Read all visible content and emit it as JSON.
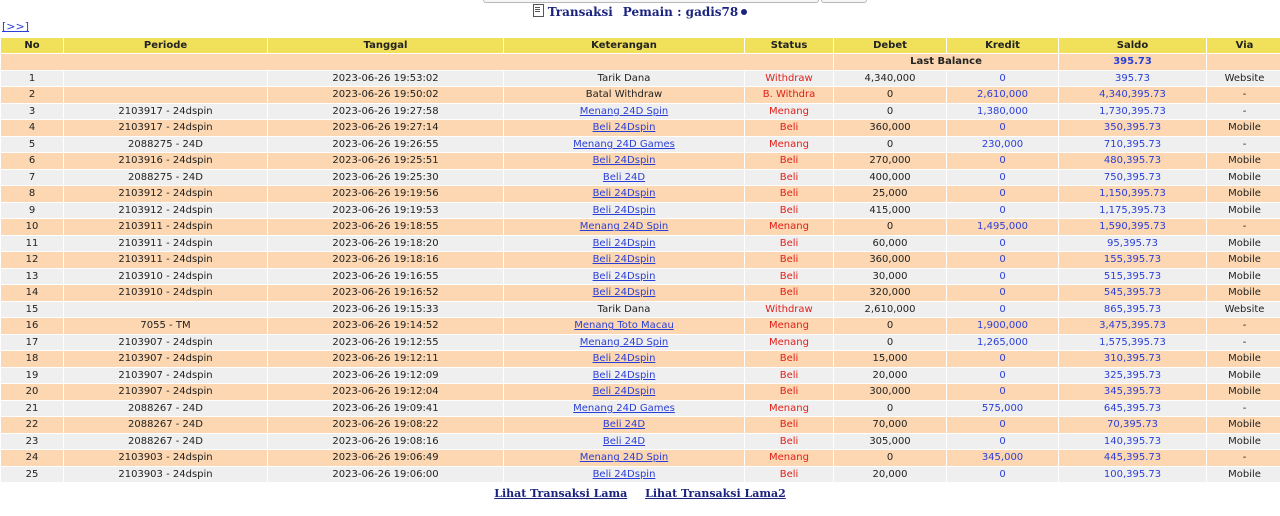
{
  "header": {
    "transaksi_label": "Transaksi",
    "pemain_label": "Pemain : gadis78"
  },
  "nav": {
    "next_label": "[>>]"
  },
  "columns": [
    "No",
    "Periode",
    "Tanggal",
    "Keterangan",
    "Status",
    "Debet",
    "Kredit",
    "Saldo",
    "Via"
  ],
  "last_balance": {
    "label": "Last Balance",
    "value": "395.73"
  },
  "rows": [
    {
      "no": "1",
      "periode": "",
      "tanggal": "2023-06-26 19:53:02",
      "keterangan": "Tarik Dana",
      "status": "Withdraw",
      "debet": "4,340,000",
      "kredit": "0",
      "saldo": "395.73",
      "via": "Website"
    },
    {
      "no": "2",
      "periode": "",
      "tanggal": "2023-06-26 19:50:02",
      "keterangan": "Batal Withdraw",
      "status": "B. Withdra",
      "debet": "0",
      "kredit": "2,610,000",
      "saldo": "4,340,395.73",
      "via": "-"
    },
    {
      "no": "3",
      "periode": "2103917 - 24dspin",
      "tanggal": "2023-06-26 19:27:58",
      "keterangan": "Menang 24D Spin",
      "status": "Menang",
      "debet": "0",
      "kredit": "1,380,000",
      "saldo": "1,730,395.73",
      "via": "-"
    },
    {
      "no": "4",
      "periode": "2103917 - 24dspin",
      "tanggal": "2023-06-26 19:27:14",
      "keterangan": "Beli 24Dspin",
      "status": "Beli",
      "debet": "360,000",
      "kredit": "0",
      "saldo": "350,395.73",
      "via": "Mobile"
    },
    {
      "no": "5",
      "periode": "2088275 - 24D",
      "tanggal": "2023-06-26 19:26:55",
      "keterangan": "Menang 24D Games",
      "status": "Menang",
      "debet": "0",
      "kredit": "230,000",
      "saldo": "710,395.73",
      "via": "-"
    },
    {
      "no": "6",
      "periode": "2103916 - 24dspin",
      "tanggal": "2023-06-26 19:25:51",
      "keterangan": "Beli 24Dspin",
      "status": "Beli",
      "debet": "270,000",
      "kredit": "0",
      "saldo": "480,395.73",
      "via": "Mobile"
    },
    {
      "no": "7",
      "periode": "2088275 - 24D",
      "tanggal": "2023-06-26 19:25:30",
      "keterangan": "Beli 24D",
      "status": "Beli",
      "debet": "400,000",
      "kredit": "0",
      "saldo": "750,395.73",
      "via": "Mobile"
    },
    {
      "no": "8",
      "periode": "2103912 - 24dspin",
      "tanggal": "2023-06-26 19:19:56",
      "keterangan": "Beli 24Dspin",
      "status": "Beli",
      "debet": "25,000",
      "kredit": "0",
      "saldo": "1,150,395.73",
      "via": "Mobile"
    },
    {
      "no": "9",
      "periode": "2103912 - 24dspin",
      "tanggal": "2023-06-26 19:19:53",
      "keterangan": "Beli 24Dspin",
      "status": "Beli",
      "debet": "415,000",
      "kredit": "0",
      "saldo": "1,175,395.73",
      "via": "Mobile"
    },
    {
      "no": "10",
      "periode": "2103911 - 24dspin",
      "tanggal": "2023-06-26 19:18:55",
      "keterangan": "Menang 24D Spin",
      "status": "Menang",
      "debet": "0",
      "kredit": "1,495,000",
      "saldo": "1,590,395.73",
      "via": "-"
    },
    {
      "no": "11",
      "periode": "2103911 - 24dspin",
      "tanggal": "2023-06-26 19:18:20",
      "keterangan": "Beli 24Dspin",
      "status": "Beli",
      "debet": "60,000",
      "kredit": "0",
      "saldo": "95,395.73",
      "via": "Mobile"
    },
    {
      "no": "12",
      "periode": "2103911 - 24dspin",
      "tanggal": "2023-06-26 19:18:16",
      "keterangan": "Beli 24Dspin",
      "status": "Beli",
      "debet": "360,000",
      "kredit": "0",
      "saldo": "155,395.73",
      "via": "Mobile"
    },
    {
      "no": "13",
      "periode": "2103910 - 24dspin",
      "tanggal": "2023-06-26 19:16:55",
      "keterangan": "Beli 24Dspin",
      "status": "Beli",
      "debet": "30,000",
      "kredit": "0",
      "saldo": "515,395.73",
      "via": "Mobile"
    },
    {
      "no": "14",
      "periode": "2103910 - 24dspin",
      "tanggal": "2023-06-26 19:16:52",
      "keterangan": "Beli 24Dspin",
      "status": "Beli",
      "debet": "320,000",
      "kredit": "0",
      "saldo": "545,395.73",
      "via": "Mobile"
    },
    {
      "no": "15",
      "periode": "",
      "tanggal": "2023-06-26 19:15:33",
      "keterangan": "Tarik Dana",
      "status": "Withdraw",
      "debet": "2,610,000",
      "kredit": "0",
      "saldo": "865,395.73",
      "via": "Website"
    },
    {
      "no": "16",
      "periode": "7055 - TM",
      "tanggal": "2023-06-26 19:14:52",
      "keterangan": "Menang Toto Macau",
      "status": "Menang",
      "debet": "0",
      "kredit": "1,900,000",
      "saldo": "3,475,395.73",
      "via": "-"
    },
    {
      "no": "17",
      "periode": "2103907 - 24dspin",
      "tanggal": "2023-06-26 19:12:55",
      "keterangan": "Menang 24D Spin",
      "status": "Menang",
      "debet": "0",
      "kredit": "1,265,000",
      "saldo": "1,575,395.73",
      "via": "-"
    },
    {
      "no": "18",
      "periode": "2103907 - 24dspin",
      "tanggal": "2023-06-26 19:12:11",
      "keterangan": "Beli 24Dspin",
      "status": "Beli",
      "debet": "15,000",
      "kredit": "0",
      "saldo": "310,395.73",
      "via": "Mobile"
    },
    {
      "no": "19",
      "periode": "2103907 - 24dspin",
      "tanggal": "2023-06-26 19:12:09",
      "keterangan": "Beli 24Dspin",
      "status": "Beli",
      "debet": "20,000",
      "kredit": "0",
      "saldo": "325,395.73",
      "via": "Mobile"
    },
    {
      "no": "20",
      "periode": "2103907 - 24dspin",
      "tanggal": "2023-06-26 19:12:04",
      "keterangan": "Beli 24Dspin",
      "status": "Beli",
      "debet": "300,000",
      "kredit": "0",
      "saldo": "345,395.73",
      "via": "Mobile"
    },
    {
      "no": "21",
      "periode": "2088267 - 24D",
      "tanggal": "2023-06-26 19:09:41",
      "keterangan": "Menang 24D Games",
      "status": "Menang",
      "debet": "0",
      "kredit": "575,000",
      "saldo": "645,395.73",
      "via": "-"
    },
    {
      "no": "22",
      "periode": "2088267 - 24D",
      "tanggal": "2023-06-26 19:08:22",
      "keterangan": "Beli 24D",
      "status": "Beli",
      "debet": "70,000",
      "kredit": "0",
      "saldo": "70,395.73",
      "via": "Mobile"
    },
    {
      "no": "23",
      "periode": "2088267 - 24D",
      "tanggal": "2023-06-26 19:08:16",
      "keterangan": "Beli 24D",
      "status": "Beli",
      "debet": "305,000",
      "kredit": "0",
      "saldo": "140,395.73",
      "via": "Mobile"
    },
    {
      "no": "24",
      "periode": "2103903 - 24dspin",
      "tanggal": "2023-06-26 19:06:49",
      "keterangan": "Menang 24D Spin",
      "status": "Menang",
      "debet": "0",
      "kredit": "345,000",
      "saldo": "445,395.73",
      "via": "-"
    },
    {
      "no": "25",
      "periode": "2103903 - 24dspin",
      "tanggal": "2023-06-26 19:06:00",
      "keterangan": "Beli 24Dspin",
      "status": "Beli",
      "debet": "20,000",
      "kredit": "0",
      "saldo": "100,395.73",
      "via": "Mobile"
    }
  ],
  "footer": {
    "link1": "Lihat Transaksi Lama",
    "link2": "Lihat Transaksi Lama2"
  },
  "colors": {
    "header_bg": "#f1e05a",
    "row_odd": "#efefef",
    "row_even": "#fcd7b1",
    "status_red": "#e0201a",
    "number_blue": "#2a3fd8",
    "title_navy": "#1a237e"
  }
}
